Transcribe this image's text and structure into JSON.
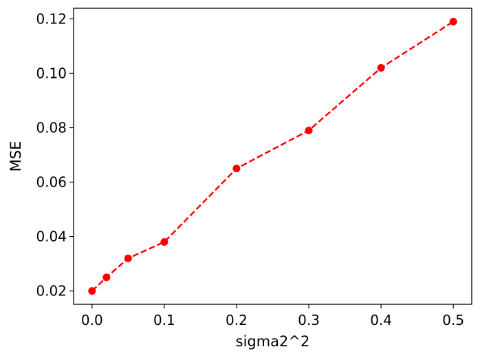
{
  "chart_data": {
    "type": "line",
    "title": "",
    "xlabel": "sigma2^2",
    "ylabel": "MSE",
    "xlim": [
      -0.0255,
      0.5255
    ],
    "ylim": [
      0.0151,
      0.1239
    ],
    "x_ticks": [
      0.0,
      0.1,
      0.2,
      0.3,
      0.4,
      0.5
    ],
    "x_tick_labels": [
      "0.0",
      "0.1",
      "0.2",
      "0.3",
      "0.4",
      "0.5"
    ],
    "y_ticks": [
      0.02,
      0.04,
      0.06,
      0.08,
      0.1,
      0.12
    ],
    "y_tick_labels": [
      "0.02",
      "0.04",
      "0.06",
      "0.08",
      "0.10",
      "0.12"
    ],
    "grid": false,
    "legend": false,
    "series": [
      {
        "x": [
          0.0,
          0.02,
          0.05,
          0.1,
          0.2,
          0.3,
          0.4,
          0.5
        ],
        "values": [
          0.02,
          0.025,
          0.032,
          0.038,
          0.065,
          0.079,
          0.102,
          0.119
        ],
        "color": "#ff0000",
        "line_style": "dashed",
        "marker": "circle"
      }
    ]
  }
}
